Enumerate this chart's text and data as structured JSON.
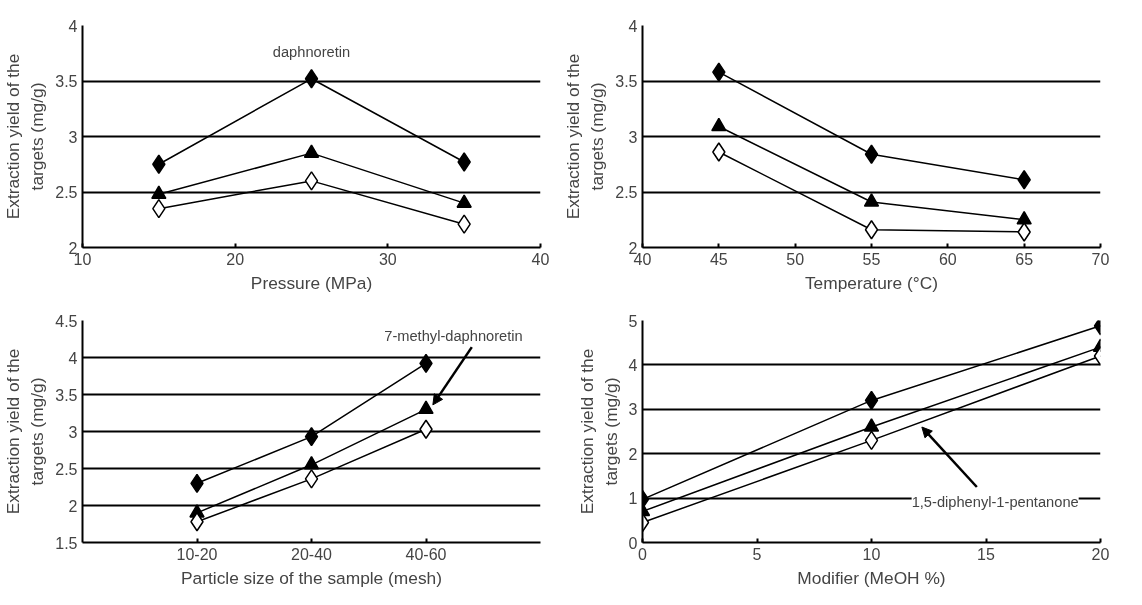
{
  "chart_data": [
    {
      "type": "line",
      "xlabel": "Pressure (MPa)",
      "ylabel": "Extraction yield of the\ntargets (mg/g)",
      "x": [
        15,
        25,
        35
      ],
      "xlim": [
        10,
        40
      ],
      "xticks": [
        10,
        20,
        30,
        40
      ],
      "ylim": [
        2,
        4
      ],
      "yticks": [
        2,
        2.5,
        3,
        3.5,
        4
      ],
      "grid": "y",
      "line_style": "solid",
      "series": [
        {
          "color": "#000000",
          "marker": "diamond",
          "values": [
            2.75,
            3.52,
            2.77
          ]
        },
        {
          "color": "#000000",
          "marker": "triangle",
          "values": [
            2.48,
            2.85,
            2.4
          ]
        },
        {
          "color": "#ffffff",
          "marker": "diamond",
          "values": [
            2.35,
            2.6,
            2.21
          ]
        }
      ],
      "annotations": [
        "daphnoretin"
      ]
    },
    {
      "type": "line",
      "xlabel": "Temperature (°C)",
      "ylabel": "Extraction yield of the\ntargets (mg/g)",
      "x": [
        45,
        55,
        65
      ],
      "xlim": [
        40,
        70
      ],
      "xticks": [
        40,
        45,
        50,
        55,
        60,
        65,
        70
      ],
      "ylim": [
        2,
        4
      ],
      "yticks": [
        2,
        2.5,
        3,
        3.5,
        4
      ],
      "grid": "y",
      "line_style": "solid",
      "series": [
        {
          "color": "#000000",
          "marker": "diamond",
          "values": [
            3.58,
            2.84,
            2.61
          ]
        },
        {
          "color": "#000000",
          "marker": "triangle",
          "values": [
            3.09,
            2.41,
            2.25
          ]
        },
        {
          "color": "#ffffff",
          "marker": "diamond",
          "values": [
            2.86,
            2.16,
            2.14
          ]
        }
      ]
    },
    {
      "type": "line",
      "xlabel": "Particle size of the sample (mesh)",
      "ylabel": "Extraction yield of the\ntargets (mg/g)",
      "categories": [
        "10-20",
        "20-40",
        "40-60"
      ],
      "ylim": [
        1.5,
        4.5
      ],
      "yticks": [
        1.5,
        2,
        2.5,
        3,
        3.5,
        4,
        4.5
      ],
      "grid": "y",
      "line_style": "solid",
      "series": [
        {
          "color": "#000000",
          "marker": "diamond",
          "values": [
            2.3,
            2.93,
            3.92
          ]
        },
        {
          "color": "#000000",
          "marker": "triangle",
          "values": [
            1.9,
            2.55,
            3.3
          ]
        },
        {
          "color": "#ffffff",
          "marker": "diamond",
          "values": [
            1.78,
            2.36,
            3.03
          ]
        }
      ],
      "annotations": [
        {
          "text": "7-methyl-daphnoretin",
          "x": "40-60",
          "y": 3.3
        }
      ]
    },
    {
      "type": "line",
      "xlabel": "Modifier (MeOH %)",
      "ylabel": "Extraction yield of the\ntargets (mg/g)",
      "x": [
        0,
        10,
        20
      ],
      "xlim": [
        0,
        20
      ],
      "xticks": [
        0,
        5,
        10,
        15,
        20
      ],
      "ylim": [
        0,
        5
      ],
      "yticks": [
        0,
        1,
        2,
        3,
        4,
        5
      ],
      "grid": "y",
      "line_style": "solid",
      "series": [
        {
          "color": "#000000",
          "marker": "diamond",
          "values": [
            0.97,
            3.2,
            4.88
          ]
        },
        {
          "color": "#000000",
          "marker": "triangle",
          "values": [
            0.7,
            2.6,
            4.4
          ]
        },
        {
          "color": "#ffffff",
          "marker": "diamond",
          "values": [
            0.45,
            2.3,
            4.2
          ]
        }
      ],
      "annotations": [
        {
          "text": "1,5-diphenyl-1-pentanone",
          "x": 12.2,
          "y": 2.6
        }
      ]
    }
  ]
}
